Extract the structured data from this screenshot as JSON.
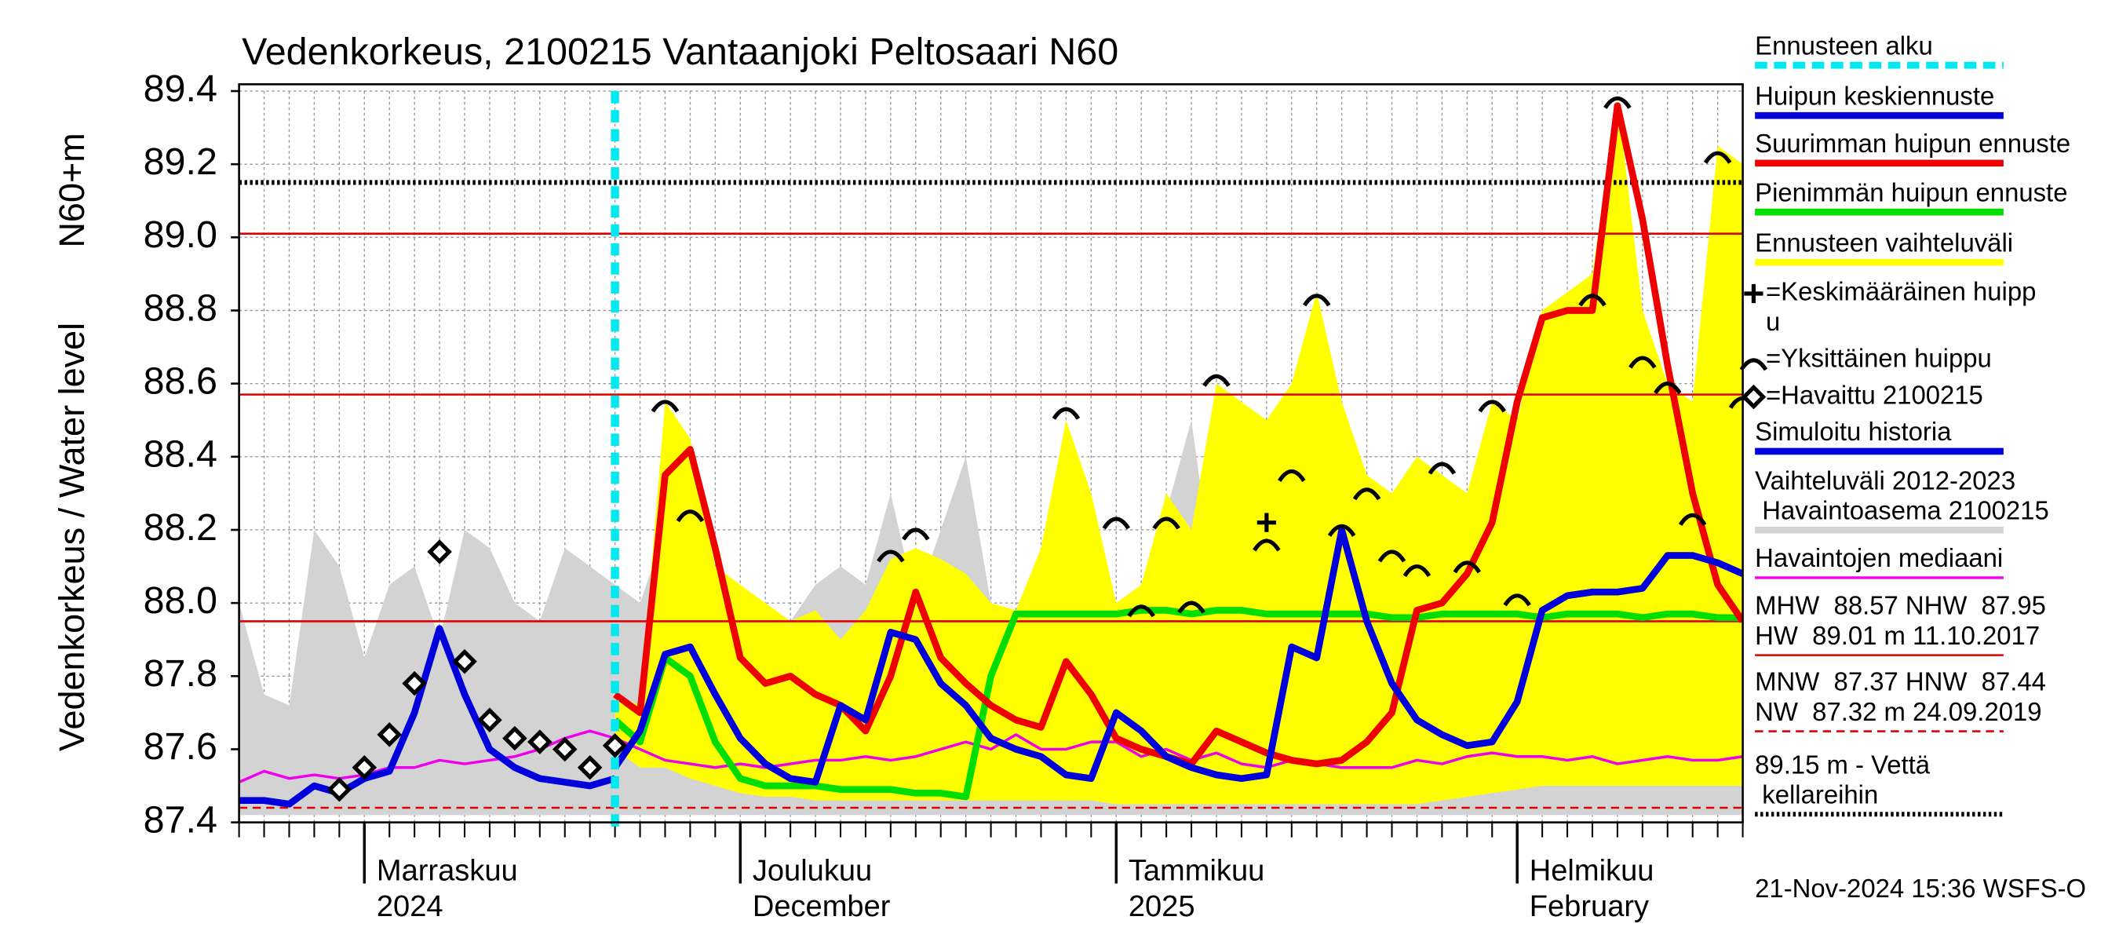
{
  "chart_data": {
    "type": "line",
    "title": "Vedenkorkeus, 2100215 Vantaanjoki Peltosaari N60",
    "y_label": "Vedenkorkeus / Water level",
    "y_unit_label": "N60+m",
    "timestamp": "21-Nov-2024 15:36 WSFS-O",
    "grid": true,
    "ylim": [
      87.4,
      89.4
    ],
    "yticks": [
      87.4,
      87.6,
      87.8,
      {
        "value": 88,
        "label": "88.0"
      },
      88.2,
      88.4,
      88.6,
      88.8,
      {
        "value": 89,
        "label": "89.0"
      },
      89.2,
      89.4
    ],
    "categories": [
      null,
      null,
      null,
      null,
      null,
      "Marraskuu",
      null,
      null,
      null,
      null,
      null,
      null,
      null,
      null,
      null,
      null,
      null,
      null,
      null,
      null,
      "Joulukuu",
      null,
      null,
      null,
      null,
      null,
      null,
      null,
      null,
      null,
      null,
      null,
      null,
      null,
      null,
      "Tammikuu",
      null,
      null,
      null,
      null,
      null,
      null,
      null,
      null,
      null,
      null,
      null,
      null,
      null,
      null,
      null,
      "Helmikuu",
      null,
      null,
      null,
      null,
      null,
      null,
      null,
      null,
      null
    ],
    "category_sublabels": [
      null,
      null,
      null,
      null,
      null,
      "2024",
      null,
      null,
      null,
      null,
      null,
      null,
      null,
      null,
      null,
      null,
      null,
      null,
      null,
      null,
      "December",
      null,
      null,
      null,
      null,
      null,
      null,
      null,
      null,
      null,
      null,
      null,
      null,
      null,
      null,
      "2025",
      null,
      null,
      null,
      null,
      null,
      null,
      null,
      null,
      null,
      null,
      null,
      null,
      null,
      null,
      null,
      "February",
      null,
      null,
      null,
      null,
      null,
      null,
      null,
      null,
      null
    ],
    "forecast_start": {
      "name": "Ennusteen alku",
      "color": "#00e8f0",
      "category_index": 15
    },
    "series": [
      {
        "name": "Huipun keskiennuste",
        "kind": "line",
        "color": "#0000dd",
        "values": [
          null,
          null,
          null,
          null,
          null,
          null,
          null,
          null,
          null,
          null,
          null,
          null,
          null,
          null,
          null,
          87.55,
          87.65,
          87.86,
          87.88,
          87.75,
          87.63,
          87.56,
          87.52,
          87.51,
          87.72,
          87.68,
          87.92,
          87.9,
          87.78,
          87.72,
          87.63,
          87.6,
          87.58,
          87.53,
          87.52,
          87.7,
          87.65,
          87.58,
          87.55,
          87.53,
          87.52,
          87.53,
          87.88,
          87.85,
          88.2,
          87.95,
          87.78,
          87.68,
          87.64,
          87.61,
          87.62,
          87.73,
          87.98,
          88.02,
          88.03,
          88.03,
          88.04,
          88.13,
          88.13,
          88.11,
          88.08
        ]
      },
      {
        "name": "Suurimman huipun ennuste",
        "kind": "line",
        "color": "#ee0000",
        "values": [
          null,
          null,
          null,
          null,
          null,
          null,
          null,
          null,
          null,
          null,
          null,
          null,
          null,
          null,
          null,
          87.75,
          87.7,
          88.35,
          88.42,
          88.15,
          87.85,
          87.78,
          87.8,
          87.75,
          87.72,
          87.65,
          87.8,
          88.03,
          87.85,
          87.78,
          87.72,
          87.68,
          87.66,
          87.84,
          87.75,
          87.63,
          87.6,
          87.58,
          87.56,
          87.65,
          87.62,
          87.59,
          87.57,
          87.56,
          87.57,
          87.62,
          87.7,
          87.98,
          88.0,
          88.08,
          88.22,
          88.55,
          88.78,
          88.8,
          88.8,
          89.36,
          89.05,
          88.65,
          88.3,
          88.05,
          87.95
        ]
      },
      {
        "name": "Pienimmän huipun ennuste",
        "kind": "line",
        "color": "#00dd00",
        "values": [
          null,
          null,
          null,
          null,
          null,
          null,
          null,
          null,
          null,
          null,
          null,
          null,
          null,
          null,
          null,
          87.68,
          87.62,
          87.85,
          87.8,
          87.62,
          87.52,
          87.5,
          87.5,
          87.5,
          87.49,
          87.49,
          87.49,
          87.48,
          87.48,
          87.47,
          87.8,
          87.97,
          87.97,
          87.97,
          87.97,
          87.97,
          87.98,
          87.98,
          87.97,
          87.98,
          87.98,
          87.97,
          87.97,
          87.97,
          87.97,
          87.97,
          87.96,
          87.96,
          87.97,
          87.97,
          87.97,
          87.97,
          87.96,
          87.97,
          87.97,
          87.97,
          87.96,
          87.97,
          87.97,
          87.96,
          87.96
        ]
      },
      {
        "name": "Ennusteen vaihteluväli",
        "kind": "band",
        "color": "#ffff00",
        "lower": [
          null,
          null,
          null,
          null,
          null,
          null,
          null,
          null,
          null,
          null,
          null,
          null,
          null,
          null,
          null,
          87.6,
          87.55,
          87.55,
          87.52,
          87.5,
          87.48,
          87.47,
          87.47,
          87.46,
          87.46,
          87.46,
          87.46,
          87.46,
          87.46,
          87.46,
          87.46,
          87.46,
          87.46,
          87.46,
          87.46,
          87.45,
          87.45,
          87.45,
          87.45,
          87.45,
          87.45,
          87.45,
          87.45,
          87.45,
          87.45,
          87.45,
          87.45,
          87.45,
          87.46,
          87.47,
          87.48,
          87.49,
          87.5,
          87.5,
          87.5,
          87.5,
          87.5,
          87.5,
          87.5,
          87.5,
          87.5
        ],
        "upper": [
          null,
          null,
          null,
          null,
          null,
          null,
          null,
          null,
          null,
          null,
          null,
          null,
          null,
          null,
          null,
          87.75,
          87.72,
          88.55,
          88.45,
          88.1,
          88.05,
          88.0,
          87.95,
          87.98,
          87.9,
          87.98,
          88.12,
          88.15,
          88.12,
          88.08,
          88.0,
          87.98,
          88.15,
          88.5,
          88.3,
          88.0,
          88.05,
          88.3,
          88.2,
          88.6,
          88.55,
          88.5,
          88.6,
          88.85,
          88.55,
          88.35,
          88.3,
          88.4,
          88.35,
          88.3,
          88.55,
          88.5,
          88.8,
          88.85,
          88.9,
          89.38,
          88.8,
          88.6,
          88.55,
          89.25,
          89.2
        ]
      },
      {
        "name": [
          "=Keskimääräinen huipp",
          "u"
        ],
        "kind": "marker",
        "marker": "plus",
        "color": "#000000",
        "values": [
          null,
          null,
          null,
          null,
          null,
          null,
          null,
          null,
          null,
          null,
          null,
          null,
          null,
          null,
          null,
          null,
          null,
          null,
          null,
          null,
          null,
          null,
          null,
          null,
          null,
          null,
          null,
          null,
          null,
          null,
          null,
          null,
          null,
          null,
          null,
          null,
          null,
          null,
          null,
          null,
          null,
          88.22,
          null,
          null,
          null,
          null,
          null,
          null,
          null,
          null,
          null,
          null,
          null,
          null,
          null,
          null,
          null,
          null,
          null,
          null,
          null
        ]
      },
      {
        "name": "=Yksittäinen huippu",
        "kind": "marker",
        "marker": "arc",
        "color": "#000000",
        "values": [
          null,
          null,
          null,
          null,
          null,
          null,
          null,
          null,
          null,
          null,
          null,
          null,
          null,
          null,
          null,
          null,
          null,
          88.55,
          88.25,
          null,
          null,
          null,
          null,
          null,
          null,
          null,
          88.14,
          88.2,
          null,
          null,
          null,
          null,
          null,
          88.53,
          null,
          88.23,
          87.99,
          88.23,
          88.0,
          88.62,
          null,
          88.17,
          88.36,
          88.84,
          88.21,
          88.31,
          88.14,
          88.1,
          88.38,
          88.11,
          88.55,
          88.02,
          null,
          null,
          88.84,
          89.38,
          88.67,
          88.6,
          88.24,
          89.23,
          88.56
        ]
      },
      {
        "name": "=Havaittu 2100215",
        "kind": "marker",
        "marker": "diamond",
        "color": "#000000",
        "values": [
          null,
          null,
          null,
          null,
          87.49,
          87.55,
          87.64,
          87.78,
          88.14,
          87.84,
          87.68,
          87.63,
          87.62,
          87.6,
          87.55,
          87.61,
          null,
          null,
          null,
          null,
          null,
          null,
          null,
          null,
          null,
          null,
          null,
          null,
          null,
          null,
          null,
          null,
          null,
          null,
          null,
          null,
          null,
          null,
          null,
          null,
          null,
          null,
          null,
          null,
          null,
          null,
          null,
          null,
          null,
          null,
          null,
          null,
          null,
          null,
          null,
          null,
          null,
          null,
          null,
          null,
          null
        ]
      },
      {
        "name": "Simuloitu historia",
        "kind": "line",
        "color": "#0000dd",
        "values": [
          87.46,
          87.46,
          87.45,
          87.5,
          87.48,
          87.52,
          87.54,
          87.7,
          87.93,
          87.75,
          87.6,
          87.55,
          87.52,
          87.51,
          87.5,
          87.52,
          null,
          null,
          null,
          null,
          null,
          null,
          null,
          null,
          null,
          null,
          null,
          null,
          null,
          null,
          null,
          null,
          null,
          null,
          null,
          null,
          null,
          null,
          null,
          null,
          null,
          null,
          null,
          null,
          null,
          null,
          null,
          null,
          null,
          null,
          null,
          null,
          null,
          null,
          null,
          null,
          null,
          null,
          null,
          null,
          null
        ]
      },
      {
        "name": [
          "Vaihteluväli 2012-2023",
          " Havaintoasema 2100215"
        ],
        "kind": "band",
        "color": "#d3d3d3",
        "lower": [
          87.42,
          87.42,
          87.42,
          87.42,
          87.42,
          87.42,
          87.42,
          87.42,
          87.42,
          87.42,
          87.42,
          87.42,
          87.42,
          87.42,
          87.42,
          87.42,
          87.42,
          87.42,
          87.42,
          87.42,
          87.42,
          87.42,
          87.42,
          87.42,
          87.42,
          87.42,
          87.42,
          87.42,
          87.42,
          87.42,
          87.42,
          87.42,
          87.42,
          87.42,
          87.42,
          87.42,
          87.42,
          87.42,
          87.42,
          87.42,
          87.42,
          87.42,
          87.42,
          87.42,
          87.42,
          87.42,
          87.42,
          87.42,
          87.42,
          87.42,
          87.42,
          87.42,
          87.42,
          87.42,
          87.42,
          87.42,
          87.42,
          87.42,
          87.42,
          87.42,
          87.42
        ],
        "upper": [
          88.0,
          87.75,
          87.72,
          88.2,
          88.1,
          87.85,
          88.05,
          88.1,
          87.9,
          88.2,
          88.15,
          88.0,
          87.95,
          88.15,
          88.1,
          88.05,
          88.0,
          88.2,
          88.1,
          88.0,
          87.9,
          88.0,
          87.95,
          88.05,
          88.1,
          88.05,
          88.3,
          88.0,
          88.2,
          88.4,
          88.0,
          87.95,
          87.95,
          88.0,
          87.95,
          88.0,
          88.05,
          88.25,
          88.5,
          88.0,
          87.95,
          87.95,
          87.9,
          87.9,
          87.9,
          87.95,
          87.9,
          87.85,
          87.9,
          87.95,
          87.95,
          87.85,
          87.8,
          87.8,
          87.75,
          87.8,
          87.8,
          87.8,
          87.75,
          87.75,
          87.7
        ]
      },
      {
        "name": "Havaintojen mediaani",
        "kind": "line",
        "style": "thin",
        "color": "#ee00ee",
        "values": [
          87.51,
          87.54,
          87.52,
          87.53,
          87.52,
          87.53,
          87.55,
          87.55,
          87.57,
          87.56,
          87.57,
          87.58,
          87.6,
          87.63,
          87.65,
          87.63,
          87.6,
          87.57,
          87.56,
          87.55,
          87.56,
          87.55,
          87.56,
          87.57,
          87.57,
          87.58,
          87.57,
          87.58,
          87.6,
          87.62,
          87.6,
          87.64,
          87.6,
          87.6,
          87.62,
          87.62,
          87.58,
          87.6,
          87.57,
          87.59,
          87.56,
          87.55,
          87.57,
          87.56,
          87.55,
          87.55,
          87.55,
          87.57,
          87.56,
          87.58,
          87.59,
          87.58,
          87.58,
          87.57,
          87.58,
          87.56,
          87.57,
          87.58,
          87.57,
          87.57,
          87.58
        ]
      }
    ],
    "reference_lines": [
      {
        "name": [
          "MHW  88.57 NHW  87.95",
          "HW  89.01 m 11.10.2017"
        ],
        "color": "#dd0000",
        "style": "solid",
        "values": [
          88.57,
          87.95,
          89.01
        ]
      },
      {
        "name": [
          "MNW  87.37 HNW  87.44",
          "NW  87.32 m 24.09.2019"
        ],
        "color": "#dd0000",
        "style": "dashed",
        "values": [
          87.44
        ]
      },
      {
        "name": [
          "89.15 m - Vettä",
          " kellareihin"
        ],
        "color": "#000000",
        "style": "dotted",
        "values": [
          89.15
        ]
      }
    ]
  }
}
